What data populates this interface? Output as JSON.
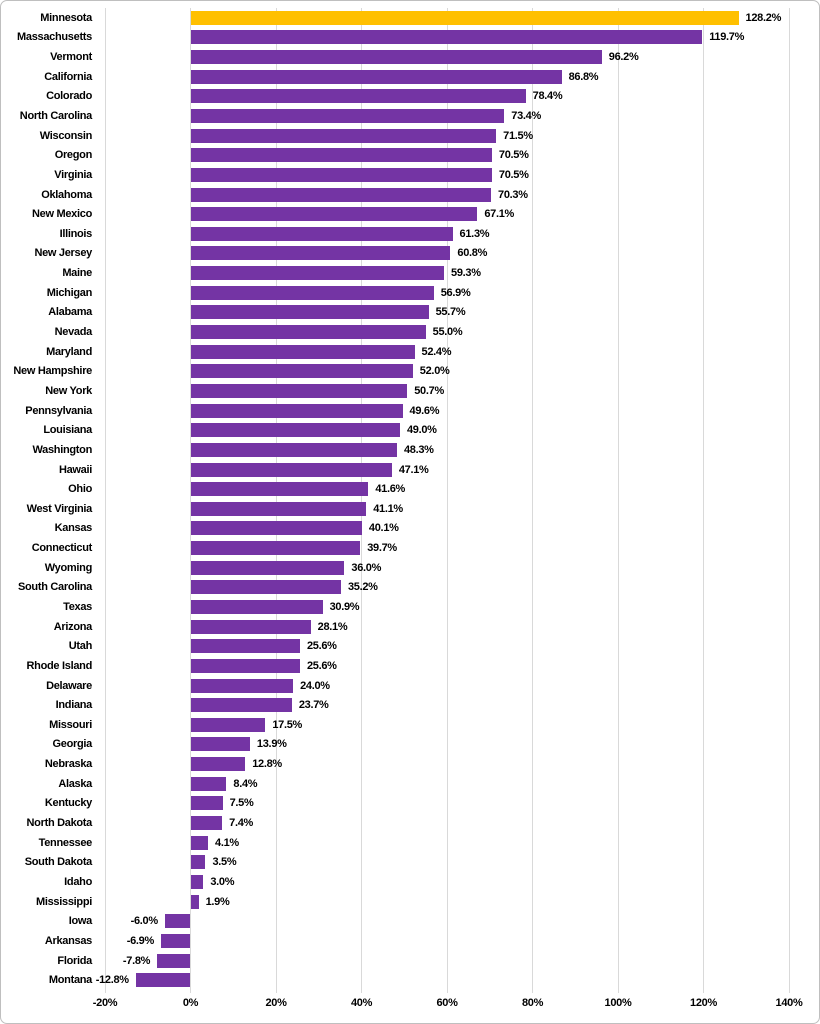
{
  "chart_data": {
    "type": "bar",
    "orientation": "horizontal",
    "title": "",
    "xlabel": "",
    "ylabel": "",
    "xlim": [
      -20,
      140
    ],
    "grid": true,
    "legend": "none",
    "x_ticks": [
      "-20%",
      "0%",
      "20%",
      "40%",
      "60%",
      "80%",
      "100%",
      "120%",
      "140%"
    ],
    "x_tick_values": [
      -20,
      0,
      20,
      40,
      60,
      80,
      100,
      120,
      140
    ],
    "colors": {
      "bar": "#7434A4",
      "highlight": "#FFC000",
      "gridline": "#D9D9D9",
      "text": "#000000",
      "border": "#BFBFBF"
    },
    "items": [
      {
        "state": "Minnesota",
        "value": 128.2,
        "label": "128.2%",
        "highlight": true
      },
      {
        "state": "Massachusetts",
        "value": 119.7,
        "label": "119.7%"
      },
      {
        "state": "Vermont",
        "value": 96.2,
        "label": "96.2%"
      },
      {
        "state": "California",
        "value": 86.8,
        "label": "86.8%"
      },
      {
        "state": "Colorado",
        "value": 78.4,
        "label": "78.4%"
      },
      {
        "state": "North Carolina",
        "value": 73.4,
        "label": "73.4%"
      },
      {
        "state": "Wisconsin",
        "value": 71.5,
        "label": "71.5%"
      },
      {
        "state": "Oregon",
        "value": 70.5,
        "label": "70.5%"
      },
      {
        "state": "Virginia",
        "value": 70.5,
        "label": "70.5%"
      },
      {
        "state": "Oklahoma",
        "value": 70.3,
        "label": "70.3%"
      },
      {
        "state": "New Mexico",
        "value": 67.1,
        "label": "67.1%"
      },
      {
        "state": "Illinois",
        "value": 61.3,
        "label": "61.3%"
      },
      {
        "state": "New Jersey",
        "value": 60.8,
        "label": "60.8%"
      },
      {
        "state": "Maine",
        "value": 59.3,
        "label": "59.3%"
      },
      {
        "state": "Michigan",
        "value": 56.9,
        "label": "56.9%"
      },
      {
        "state": "Alabama",
        "value": 55.7,
        "label": "55.7%"
      },
      {
        "state": "Nevada",
        "value": 55.0,
        "label": "55.0%"
      },
      {
        "state": "Maryland",
        "value": 52.4,
        "label": "52.4%"
      },
      {
        "state": "New Hampshire",
        "value": 52.0,
        "label": "52.0%"
      },
      {
        "state": "New York",
        "value": 50.7,
        "label": "50.7%"
      },
      {
        "state": "Pennsylvania",
        "value": 49.6,
        "label": "49.6%"
      },
      {
        "state": "Louisiana",
        "value": 49.0,
        "label": "49.0%"
      },
      {
        "state": "Washington",
        "value": 48.3,
        "label": "48.3%"
      },
      {
        "state": "Hawaii",
        "value": 47.1,
        "label": "47.1%"
      },
      {
        "state": "Ohio",
        "value": 41.6,
        "label": "41.6%"
      },
      {
        "state": "West Virginia",
        "value": 41.1,
        "label": "41.1%"
      },
      {
        "state": "Kansas",
        "value": 40.1,
        "label": "40.1%"
      },
      {
        "state": "Connecticut",
        "value": 39.7,
        "label": "39.7%"
      },
      {
        "state": "Wyoming",
        "value": 36.0,
        "label": "36.0%"
      },
      {
        "state": "South Carolina",
        "value": 35.2,
        "label": "35.2%"
      },
      {
        "state": "Texas",
        "value": 30.9,
        "label": "30.9%"
      },
      {
        "state": "Arizona",
        "value": 28.1,
        "label": "28.1%"
      },
      {
        "state": "Utah",
        "value": 25.6,
        "label": "25.6%"
      },
      {
        "state": "Rhode Island",
        "value": 25.6,
        "label": "25.6%"
      },
      {
        "state": "Delaware",
        "value": 24.0,
        "label": "24.0%"
      },
      {
        "state": "Indiana",
        "value": 23.7,
        "label": "23.7%"
      },
      {
        "state": "Missouri",
        "value": 17.5,
        "label": "17.5%"
      },
      {
        "state": "Georgia",
        "value": 13.9,
        "label": "13.9%"
      },
      {
        "state": "Nebraska",
        "value": 12.8,
        "label": "12.8%"
      },
      {
        "state": "Alaska",
        "value": 8.4,
        "label": "8.4%"
      },
      {
        "state": "Kentucky",
        "value": 7.5,
        "label": "7.5%"
      },
      {
        "state": "North Dakota",
        "value": 7.4,
        "label": "7.4%"
      },
      {
        "state": "Tennessee",
        "value": 4.1,
        "label": "4.1%"
      },
      {
        "state": "South Dakota",
        "value": 3.5,
        "label": "3.5%"
      },
      {
        "state": "Idaho",
        "value": 3.0,
        "label": "3.0%"
      },
      {
        "state": "Mississippi",
        "value": 1.9,
        "label": "1.9%"
      },
      {
        "state": "Iowa",
        "value": -6.0,
        "label": "-6.0%"
      },
      {
        "state": "Arkansas",
        "value": -6.9,
        "label": "-6.9%"
      },
      {
        "state": "Florida",
        "value": -7.8,
        "label": "-7.8%"
      },
      {
        "state": "Montana",
        "value": -12.8,
        "label": "-12.8%"
      }
    ]
  }
}
